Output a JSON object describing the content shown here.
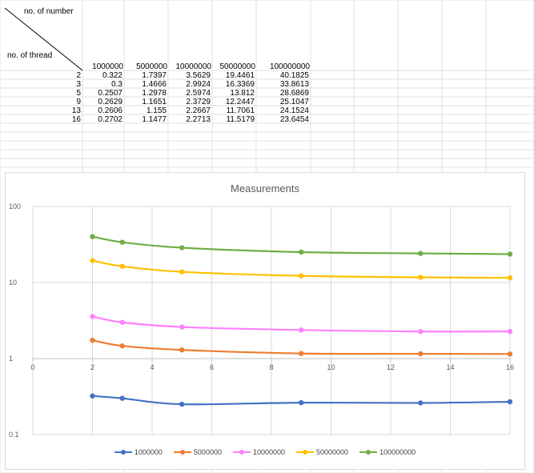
{
  "table": {
    "corner_top": "no. of number",
    "corner_bottom": "no. of thread",
    "columns": [
      "1000000",
      "5000000",
      "10000000",
      "50000000",
      "100000000"
    ],
    "rows": [
      {
        "thread": "2",
        "values": [
          "0.322",
          "1.7397",
          "3.5629",
          "19.4461",
          "40.1825"
        ]
      },
      {
        "thread": "3",
        "values": [
          "0.3",
          "1.4666",
          "2.9924",
          "16.3369",
          "33.8613"
        ]
      },
      {
        "thread": "5",
        "values": [
          "0.2507",
          "1.2978",
          "2.5974",
          "13.812",
          "28.6869"
        ]
      },
      {
        "thread": "9",
        "values": [
          "0.2629",
          "1.1651",
          "2.3729",
          "12.2447",
          "25.1047"
        ]
      },
      {
        "thread": "13",
        "values": [
          "0.2606",
          "1.155",
          "2.2667",
          "11.7061",
          "24.1524"
        ]
      },
      {
        "thread": "16",
        "values": [
          "0.2702",
          "1.1477",
          "2.2713",
          "11.5179",
          "23.6454"
        ]
      }
    ]
  },
  "chart_data": {
    "type": "line",
    "title": "Measurements",
    "xlabel": "",
    "ylabel": "",
    "x": [
      2,
      3,
      5,
      9,
      13,
      16
    ],
    "xlim": [
      0,
      16
    ],
    "x_ticks": [
      0,
      2,
      4,
      6,
      8,
      10,
      12,
      14,
      16
    ],
    "yscale": "log",
    "ylim": [
      0.1,
      100
    ],
    "y_ticks": [
      0.1,
      1,
      10,
      100
    ],
    "y_tick_labels": [
      "0.1",
      "1",
      "10",
      "100"
    ],
    "grid": true,
    "legend_position": "bottom",
    "series": [
      {
        "name": "1000000",
        "color": "#4472c4",
        "values": [
          0.322,
          0.3,
          0.2507,
          0.2629,
          0.2606,
          0.2702
        ]
      },
      {
        "name": "5000000",
        "color": "#ed7d31",
        "values": [
          1.7397,
          1.4666,
          1.2978,
          1.1651,
          1.155,
          1.1477
        ]
      },
      {
        "name": "10000000",
        "color": "#ff80ff",
        "values": [
          3.5629,
          2.9924,
          2.5974,
          2.3729,
          2.2667,
          2.2713
        ]
      },
      {
        "name": "50000000",
        "color": "#ffc000",
        "values": [
          19.4461,
          16.3369,
          13.812,
          12.2447,
          11.7061,
          11.5179
        ]
      },
      {
        "name": "100000000",
        "color": "#70ad47",
        "values": [
          40.1825,
          33.8613,
          28.6869,
          25.1047,
          24.1524,
          23.6454
        ]
      }
    ]
  }
}
